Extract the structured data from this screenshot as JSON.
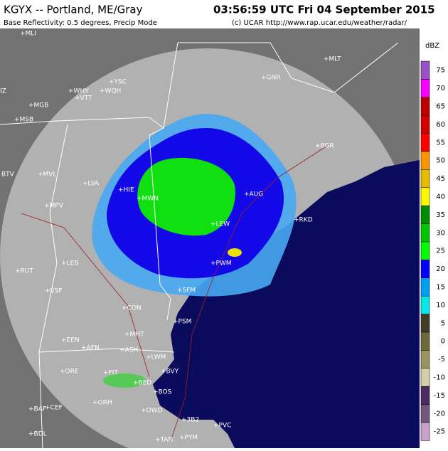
{
  "header": {
    "station": "KGYX -- Portland, ME/Gray",
    "time": "03:56:59 UTC Fri 04 September 2015",
    "product": "Base Reflectivity: 0.5 degrees, Precip Mode",
    "credit": "(c) UCAR  http://www.rap.ucar.edu/weather/radar/"
  },
  "legend": {
    "unit": "dBZ",
    "items": [
      {
        "label": "75",
        "color": "#9854c6"
      },
      {
        "label": "70",
        "color": "#f800fd"
      },
      {
        "label": "65",
        "color": "#bc0000"
      },
      {
        "label": "60",
        "color": "#d40000"
      },
      {
        "label": "55",
        "color": "#fd0000"
      },
      {
        "label": "50",
        "color": "#fd9500"
      },
      {
        "label": "45",
        "color": "#e5bc00"
      },
      {
        "label": "40",
        "color": "#fdf802"
      },
      {
        "label": "35",
        "color": "#008e00"
      },
      {
        "label": "30",
        "color": "#01c501"
      },
      {
        "label": "25",
        "color": "#02fd02"
      },
      {
        "label": "20",
        "color": "#0300f4"
      },
      {
        "label": "15",
        "color": "#019ff4"
      },
      {
        "label": "10",
        "color": "#04e9e7"
      },
      {
        "label": "5",
        "color": "#403c27"
      },
      {
        "label": "0",
        "color": "#6b6a3a"
      },
      {
        "label": "-5",
        "color": "#9a9560"
      },
      {
        "label": "-10",
        "color": "#d3d0a8"
      },
      {
        "label": "-15",
        "color": "#4d2a63"
      },
      {
        "label": "-20",
        "color": "#73577c"
      },
      {
        "label": "-25",
        "color": "#c8a2cb"
      }
    ]
  },
  "stations": [
    "+MLI",
    "+MLT",
    "+YSC",
    "+WHY",
    "+WQH",
    "+VTT",
    "+GNR",
    "+MGB",
    "+MSB",
    "IZ",
    "+BGR",
    "BTV",
    "+MVL",
    "+AUG",
    "+LVA",
    "+HIE",
    "+MWN",
    "+MPV",
    "+RKD",
    "+LEW",
    "+PWM",
    "+LEB",
    "+RUT",
    "+VSF",
    "+SFM",
    "+PSM",
    "+CON",
    "+MHT",
    "+EEN",
    "+AFN",
    "+ASH",
    "+LWM",
    "+BVY",
    "+ORE",
    "+FIT",
    "+BED",
    "+BOS",
    "+ORH",
    "+OWD",
    "+BAF",
    "+CEF",
    "+3B2",
    "+PVC",
    "+BDL",
    "+TAN",
    "+PYM"
  ]
}
